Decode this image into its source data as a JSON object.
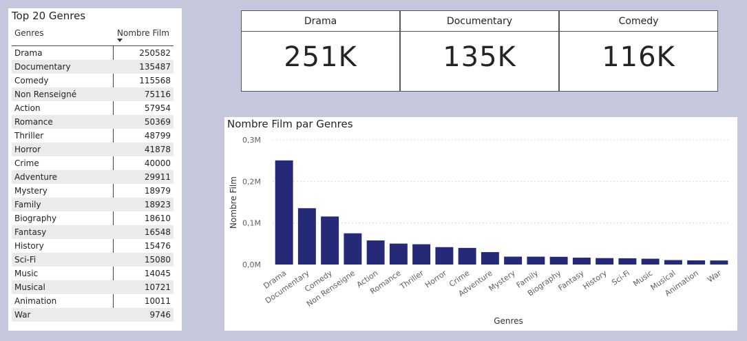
{
  "table": {
    "title": "Top 20 Genres",
    "col_genre": "Genres",
    "col_count": "Nombre Film",
    "rows": [
      {
        "genre": "Drama",
        "count": "250582"
      },
      {
        "genre": "Documentary",
        "count": "135487"
      },
      {
        "genre": "Comedy",
        "count": "115568"
      },
      {
        "genre": "Non Renseigné",
        "count": "75116"
      },
      {
        "genre": "Action",
        "count": "57954"
      },
      {
        "genre": "Romance",
        "count": "50369"
      },
      {
        "genre": "Thriller",
        "count": "48799"
      },
      {
        "genre": "Horror",
        "count": "41878"
      },
      {
        "genre": "Crime",
        "count": "40000"
      },
      {
        "genre": "Adventure",
        "count": "29911"
      },
      {
        "genre": "Mystery",
        "count": "18979"
      },
      {
        "genre": "Family",
        "count": "18923"
      },
      {
        "genre": "Biography",
        "count": "18610"
      },
      {
        "genre": "Fantasy",
        "count": "16548"
      },
      {
        "genre": "History",
        "count": "15476"
      },
      {
        "genre": "Sci-Fi",
        "count": "15080"
      },
      {
        "genre": "Music",
        "count": "14045"
      },
      {
        "genre": "Musical",
        "count": "10721"
      },
      {
        "genre": "Animation",
        "count": "10011"
      },
      {
        "genre": "War",
        "count": "9746"
      }
    ]
  },
  "kpis": [
    {
      "label": "Drama",
      "value": "251K"
    },
    {
      "label": "Documentary",
      "value": "135K"
    },
    {
      "label": "Comedy",
      "value": "116K"
    }
  ],
  "colors": {
    "bar": "#252a78",
    "grid": "#d8d8d8",
    "background": "#c5c7dc"
  },
  "chart_data": {
    "type": "bar",
    "title": "Nombre Film par Genres",
    "xlabel": "Genres",
    "ylabel": "Nombre Film",
    "ylim": [
      0,
      300000
    ],
    "yticks": [
      {
        "value": 0,
        "label": "0,0M"
      },
      {
        "value": 100000,
        "label": "0,1M"
      },
      {
        "value": 200000,
        "label": "0,2M"
      },
      {
        "value": 300000,
        "label": "0,3M"
      }
    ],
    "grid": true,
    "categories": [
      "Drama",
      "Documentary",
      "Comedy",
      "Non Renseigne",
      "Action",
      "Romance",
      "Thriller",
      "Horror",
      "Crime",
      "Adventure",
      "Mystery",
      "Family",
      "Biography",
      "Fantasy",
      "History",
      "Sci-Fi",
      "Music",
      "Musical",
      "Animation",
      "War"
    ],
    "values": [
      250582,
      135487,
      115568,
      75116,
      57954,
      50369,
      48799,
      41878,
      40000,
      29911,
      18979,
      18923,
      18610,
      16548,
      15476,
      15080,
      14045,
      10721,
      10011,
      9746
    ]
  }
}
